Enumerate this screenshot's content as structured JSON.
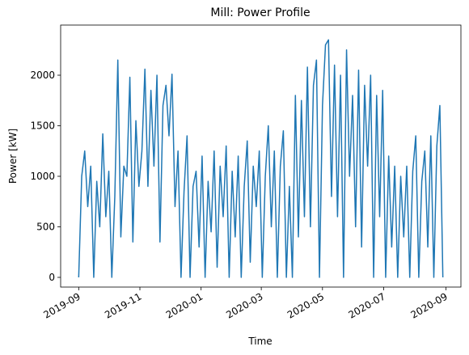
{
  "chart_data": {
    "type": "line",
    "title": "Mill: Power Profile",
    "x_label": "Time",
    "y_label": "Power [kW]",
    "x": [
      "2019-09-01",
      "2019-09-04",
      "2019-09-07",
      "2019-09-10",
      "2019-09-13",
      "2019-09-16",
      "2019-09-19",
      "2019-09-22",
      "2019-09-25",
      "2019-09-28",
      "2019-10-01",
      "2019-10-04",
      "2019-10-07",
      "2019-10-10",
      "2019-10-13",
      "2019-10-16",
      "2019-10-19",
      "2019-10-22",
      "2019-10-25",
      "2019-10-28",
      "2019-10-31",
      "2019-11-03",
      "2019-11-06",
      "2019-11-09",
      "2019-11-12",
      "2019-11-15",
      "2019-11-18",
      "2019-11-21",
      "2019-11-24",
      "2019-11-27",
      "2019-11-30",
      "2019-12-03",
      "2019-12-06",
      "2019-12-09",
      "2019-12-12",
      "2019-12-15",
      "2019-12-18",
      "2019-12-21",
      "2019-12-24",
      "2019-12-27",
      "2019-12-30",
      "2020-01-02",
      "2020-01-05",
      "2020-01-08",
      "2020-01-11",
      "2020-01-14",
      "2020-01-17",
      "2020-01-20",
      "2020-01-23",
      "2020-01-26",
      "2020-01-29",
      "2020-02-01",
      "2020-02-04",
      "2020-02-07",
      "2020-02-10",
      "2020-02-13",
      "2020-02-16",
      "2020-02-19",
      "2020-02-22",
      "2020-02-25",
      "2020-02-28",
      "2020-03-02",
      "2020-03-05",
      "2020-03-08",
      "2020-03-11",
      "2020-03-14",
      "2020-03-17",
      "2020-03-20",
      "2020-03-23",
      "2020-03-26",
      "2020-03-29",
      "2020-04-01",
      "2020-04-04",
      "2020-04-07",
      "2020-04-10",
      "2020-04-13",
      "2020-04-16",
      "2020-04-19",
      "2020-04-22",
      "2020-04-25",
      "2020-04-28",
      "2020-05-01",
      "2020-05-04",
      "2020-05-07",
      "2020-05-10",
      "2020-05-13",
      "2020-05-16",
      "2020-05-19",
      "2020-05-22",
      "2020-05-25",
      "2020-05-28",
      "2020-05-31",
      "2020-06-03",
      "2020-06-06",
      "2020-06-09",
      "2020-06-12",
      "2020-06-15",
      "2020-06-18",
      "2020-06-21",
      "2020-06-24",
      "2020-06-27",
      "2020-06-30",
      "2020-07-03",
      "2020-07-06",
      "2020-07-09",
      "2020-07-12",
      "2020-07-15",
      "2020-07-18",
      "2020-07-21",
      "2020-07-24",
      "2020-07-27",
      "2020-07-30",
      "2020-08-02",
      "2020-08-05",
      "2020-08-08",
      "2020-08-11",
      "2020-08-14",
      "2020-08-17",
      "2020-08-20",
      "2020-08-23",
      "2020-08-26",
      "2020-08-29"
    ],
    "series": [
      {
        "name": "Power",
        "color": "#1f77b4",
        "values": [
          0,
          1000,
          1250,
          700,
          1100,
          0,
          950,
          500,
          1420,
          600,
          1050,
          0,
          800,
          2150,
          400,
          1100,
          1000,
          1980,
          350,
          1550,
          900,
          1250,
          2060,
          900,
          1850,
          1100,
          2000,
          350,
          1700,
          1900,
          1400,
          2010,
          700,
          1250,
          0,
          850,
          1400,
          0,
          900,
          1050,
          300,
          1200,
          0,
          950,
          450,
          1250,
          100,
          1100,
          600,
          1300,
          0,
          1050,
          400,
          1200,
          0,
          900,
          1350,
          150,
          1100,
          700,
          1250,
          0,
          1000,
          1500,
          500,
          1250,
          0,
          1100,
          1450,
          0,
          900,
          0,
          1800,
          400,
          1750,
          600,
          2080,
          500,
          1900,
          2150,
          0,
          1700,
          2300,
          2350,
          800,
          2100,
          600,
          2000,
          0,
          2250,
          1000,
          1800,
          500,
          2050,
          300,
          1900,
          1100,
          2000,
          0,
          1800,
          600,
          1850,
          0,
          1200,
          300,
          1100,
          0,
          1000,
          400,
          1100,
          0,
          1050,
          1400,
          0,
          950,
          1250,
          300,
          1400,
          0,
          1300,
          1700,
          0
        ]
      }
    ],
    "xlim": [
      "2019-08-14",
      "2020-09-16"
    ],
    "xticks": [
      {
        "value": "2019-09-01",
        "label": "2019-09"
      },
      {
        "value": "2019-11-01",
        "label": "2019-11"
      },
      {
        "value": "2020-01-01",
        "label": "2020-01"
      },
      {
        "value": "2020-03-01",
        "label": "2020-03"
      },
      {
        "value": "2020-05-01",
        "label": "2020-05"
      },
      {
        "value": "2020-07-01",
        "label": "2020-07"
      },
      {
        "value": "2020-09-01",
        "label": "2020-09"
      }
    ],
    "ylim": [
      -96,
      2496
    ],
    "yticks": [
      0,
      500,
      1000,
      1500,
      2000
    ],
    "grid": false
  }
}
